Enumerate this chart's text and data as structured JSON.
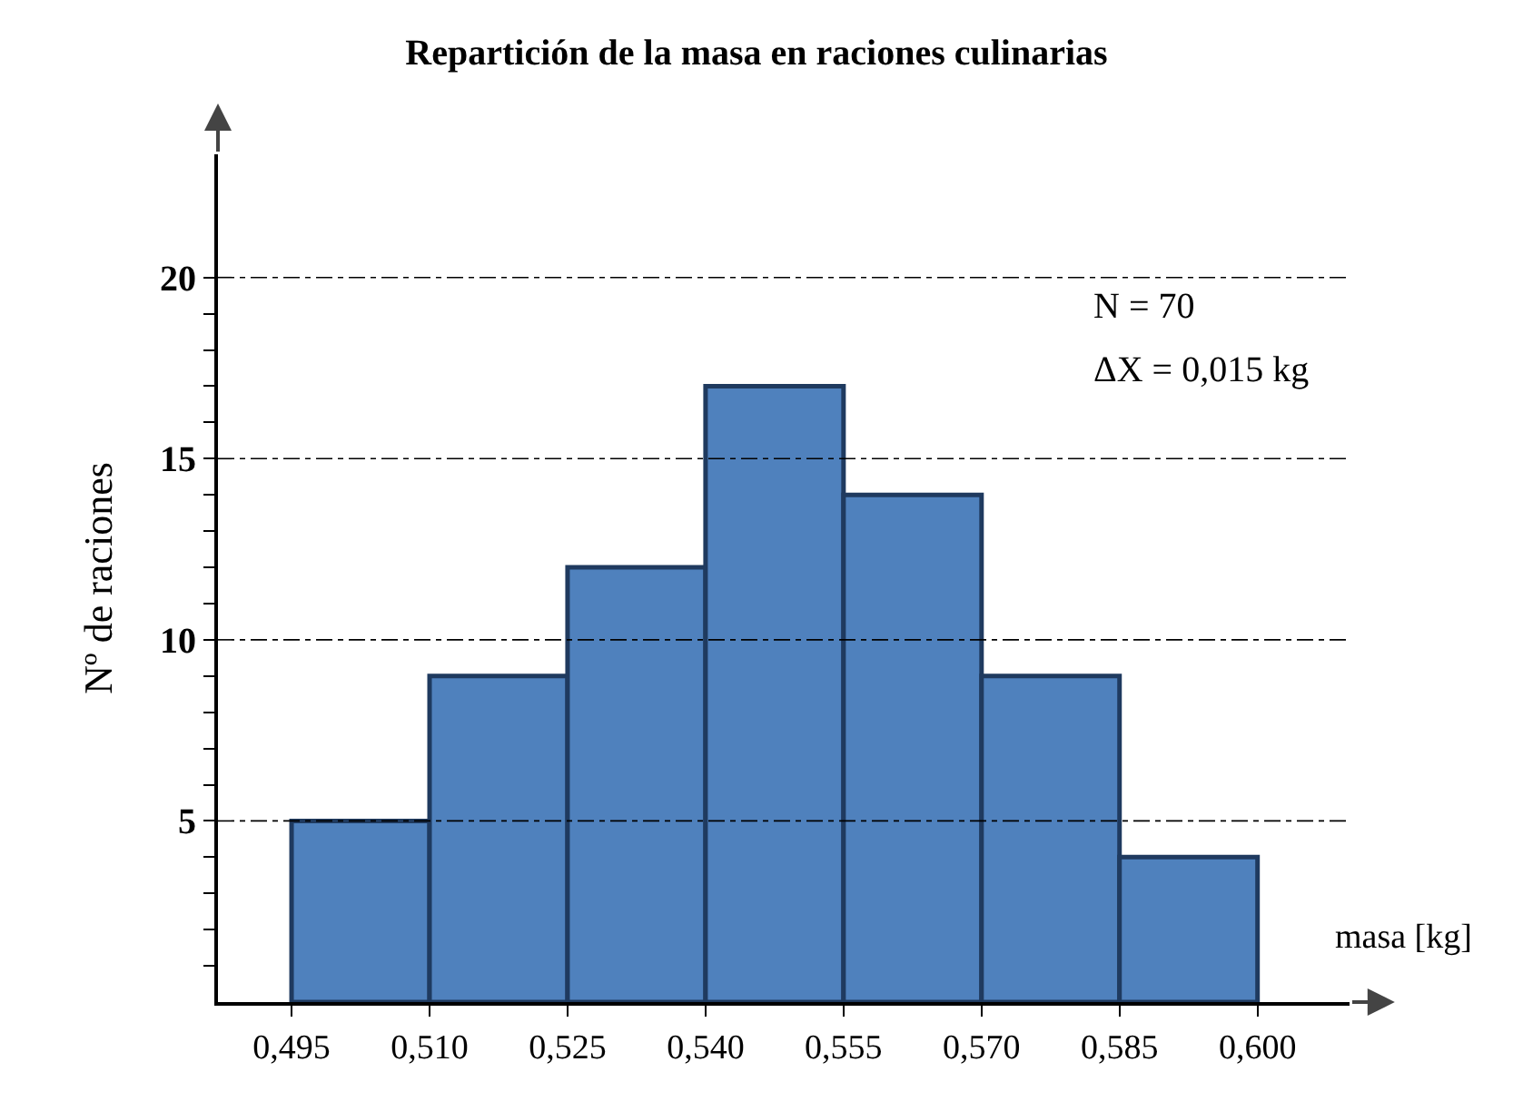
{
  "chart_data": {
    "type": "histogram",
    "title": "Repartición de la masa en raciones culinarias",
    "xlabel": "masa [kg]",
    "ylabel": "Nº de raciones",
    "bins": [
      0.495,
      0.51,
      0.525,
      0.54,
      0.555,
      0.57,
      0.585,
      0.6
    ],
    "values": [
      5,
      9,
      12,
      17,
      14,
      9,
      4
    ],
    "color": "#4f81bd",
    "xlim": [
      0.487,
      0.61
    ],
    "xticks": [
      {
        "value": 0.495,
        "label": "0,495"
      },
      {
        "value": 0.51,
        "label": "0,510"
      },
      {
        "value": 0.525,
        "label": "0,525"
      },
      {
        "value": 0.54,
        "label": "0,540"
      },
      {
        "value": 0.555,
        "label": "0,555"
      },
      {
        "value": 0.57,
        "label": "0,570"
      },
      {
        "value": 0.585,
        "label": "0,585"
      },
      {
        "value": 0.6,
        "label": "0,600"
      }
    ],
    "ylim": [
      0,
      23.4
    ],
    "yticks": [
      {
        "value": 1,
        "label": null
      },
      {
        "value": 2,
        "label": null
      },
      {
        "value": 3,
        "label": null
      },
      {
        "value": 4,
        "label": null
      },
      5,
      {
        "value": 6,
        "label": null
      },
      {
        "value": 7,
        "label": null
      },
      {
        "value": 8,
        "label": null
      },
      {
        "value": 9,
        "label": null
      },
      10,
      {
        "value": 11,
        "label": null
      },
      {
        "value": 12,
        "label": null
      },
      {
        "value": 13,
        "label": null
      },
      {
        "value": 14,
        "label": null
      },
      15,
      {
        "value": 16,
        "label": null
      },
      {
        "value": 17,
        "label": null
      },
      {
        "value": 18,
        "label": null
      },
      {
        "value": 19,
        "label": null
      },
      20
    ],
    "grid": "y",
    "annotations": [
      "N = 70",
      "ΔX = 0,015 kg"
    ]
  }
}
